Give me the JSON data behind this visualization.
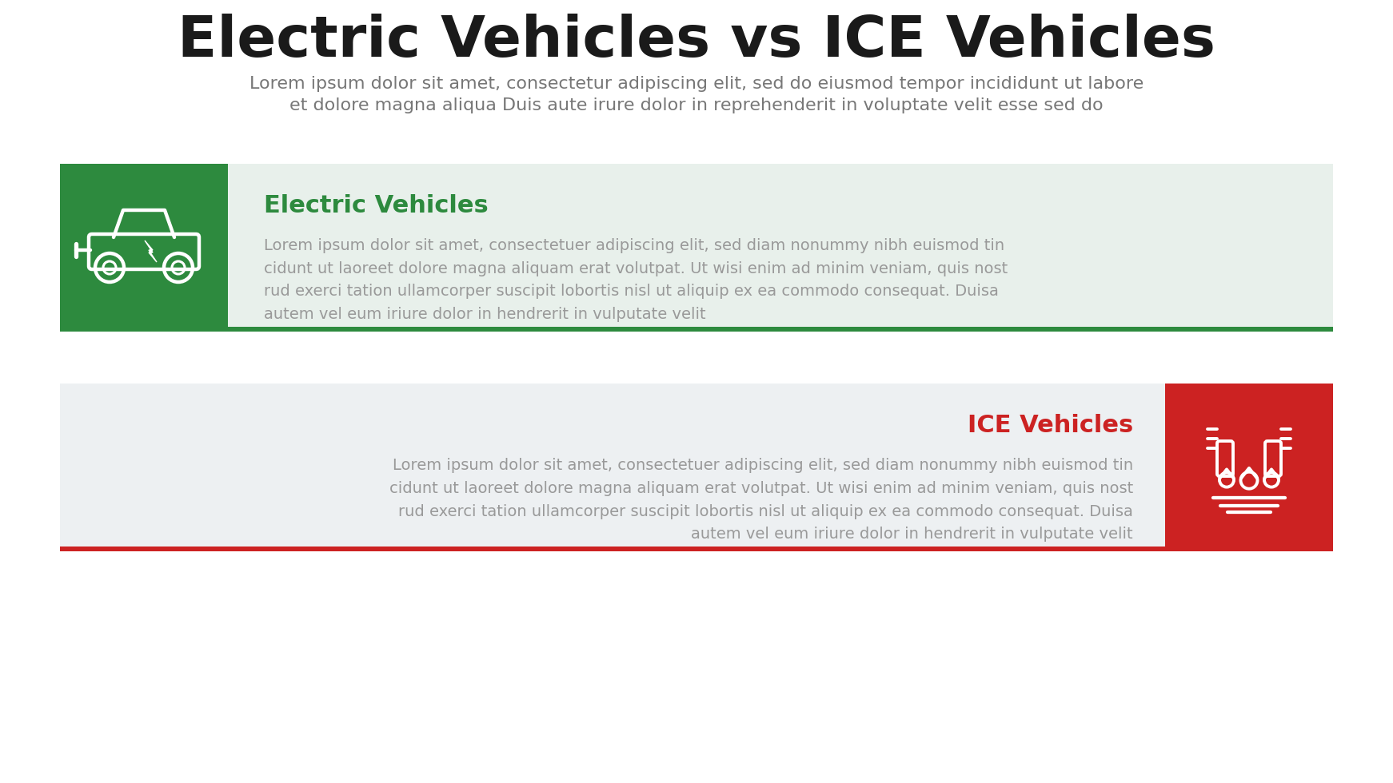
{
  "title": "Electric Vehicles vs ICE Vehicles",
  "subtitle_line1": "Lorem ipsum dolor sit amet, consectetur adipiscing elit, sed do eiusmod tempor incididunt ut labore",
  "subtitle_line2": "et dolore magna aliqua Duis aute irure dolor in reprehenderit in voluptate velit esse sed do",
  "bg_color": "#ffffff",
  "green_color": "#2d8a3e",
  "red_color": "#cc2222",
  "light_green_bg": "#e8f0eb",
  "light_gray_bg": "#edf0f2",
  "title_color": "#1a1a1a",
  "subtitle_color": "#777777",
  "ev_title": "Electric Vehicles",
  "ev_body": "Lorem ipsum dolor sit amet, consectetuer adipiscing elit, sed diam nonummy nibh euismod tin\ncidunt ut laoreet dolore magna aliquam erat volutpat. Ut wisi enim ad minim veniam, quis nost\nrud exerci tation ullamcorper suscipit lobortis nisl ut aliquip ex ea commodo consequat. Duisa\nautem vel eum iriure dolor in hendrerit in vulputate velit",
  "ice_title": "ICE Vehicles",
  "ice_body": "Lorem ipsum dolor sit amet, consectetuer adipiscing elit, sed diam nonummy nibh euismod tin\ncidunt ut laoreet dolore magna aliquam erat volutpat. Ut wisi enim ad minim veniam, quis nost\nrud exerci tation ullamcorper suscipit lobortis nisl ut aliquip ex ea commodo consequat. Duisa\nautem vel eum iriure dolor in hendrerit in vulputate velit",
  "body_color": "#999999"
}
